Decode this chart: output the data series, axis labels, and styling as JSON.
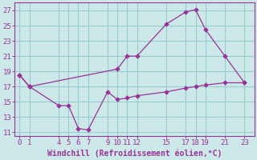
{
  "xlabel": "Windchill (Refroidissement éolien,°C)",
  "background_color": "#cce8e8",
  "grid_color": "#99cccc",
  "line_color": "#993399",
  "xlim": [
    -0.5,
    24.0
  ],
  "ylim": [
    10.5,
    28.0
  ],
  "yticks": [
    11,
    13,
    15,
    17,
    19,
    21,
    23,
    25,
    27
  ],
  "xticks": [
    0,
    1,
    4,
    5,
    6,
    7,
    9,
    10,
    11,
    12,
    15,
    17,
    18,
    19,
    21,
    23
  ],
  "line1_x": [
    0,
    1,
    4,
    5,
    6,
    7,
    9,
    10,
    11,
    12,
    15,
    17,
    18,
    19,
    21,
    23
  ],
  "line1_y": [
    18.5,
    17.0,
    14.5,
    14.5,
    11.5,
    11.3,
    16.3,
    15.3,
    15.5,
    15.8,
    16.3,
    16.8,
    17.0,
    17.2,
    17.5,
    17.5
  ],
  "line2_x": [
    0,
    1,
    10,
    11,
    12,
    15,
    17,
    18,
    19,
    21,
    23
  ],
  "line2_y": [
    18.5,
    17.0,
    19.3,
    21.0,
    21.0,
    25.2,
    26.8,
    27.1,
    24.5,
    21.0,
    17.5
  ],
  "font_color": "#993399",
  "tick_fontsize": 6.5,
  "label_fontsize": 7.0
}
